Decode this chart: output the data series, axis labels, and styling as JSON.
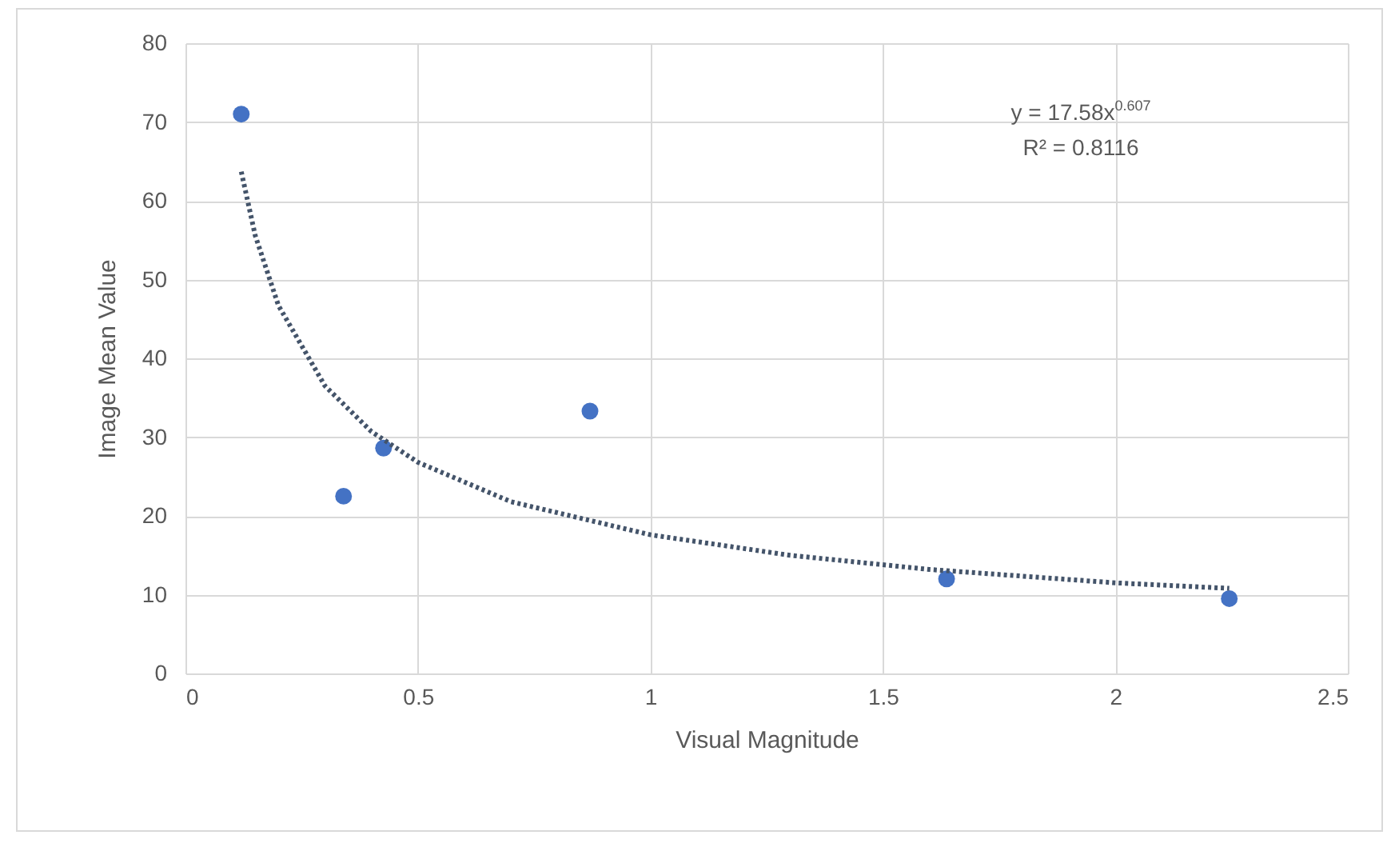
{
  "chart_data": {
    "type": "scatter",
    "xlabel": "Visual Magnitude",
    "ylabel": "Image Mean Value",
    "xlim": [
      0,
      2.5
    ],
    "xticks": [
      0,
      0.5,
      1,
      1.5,
      2,
      2.5
    ],
    "ylim": [
      0,
      80
    ],
    "yticks": [
      0,
      10,
      20,
      30,
      40,
      50,
      60,
      70,
      80
    ],
    "grid": true,
    "series": [
      {
        "color": "#4472c4",
        "marker": "circle",
        "x": [
          0.12,
          0.34,
          0.426,
          0.87,
          1.637,
          2.245
        ],
        "values": [
          71,
          22.5,
          28.6,
          33.3,
          12,
          9.5
        ]
      },
      {
        "type": "line",
        "color": "#44546a",
        "line_style": "dotted",
        "marker": "none",
        "x": [
          0.12,
          0.15,
          0.2,
          0.3,
          0.4,
          0.5,
          0.7,
          1,
          1.3,
          1.6,
          2,
          2.245
        ],
        "values": [
          63.7,
          55.6,
          46.7,
          36.5,
          30.7,
          26.8,
          21.8,
          17.6,
          15,
          13.2,
          11.5,
          10.8
        ]
      }
    ],
    "annotations": [
      "y = 17.58x$^{0.607}$",
      "R² = 0.8116"
    ]
  }
}
